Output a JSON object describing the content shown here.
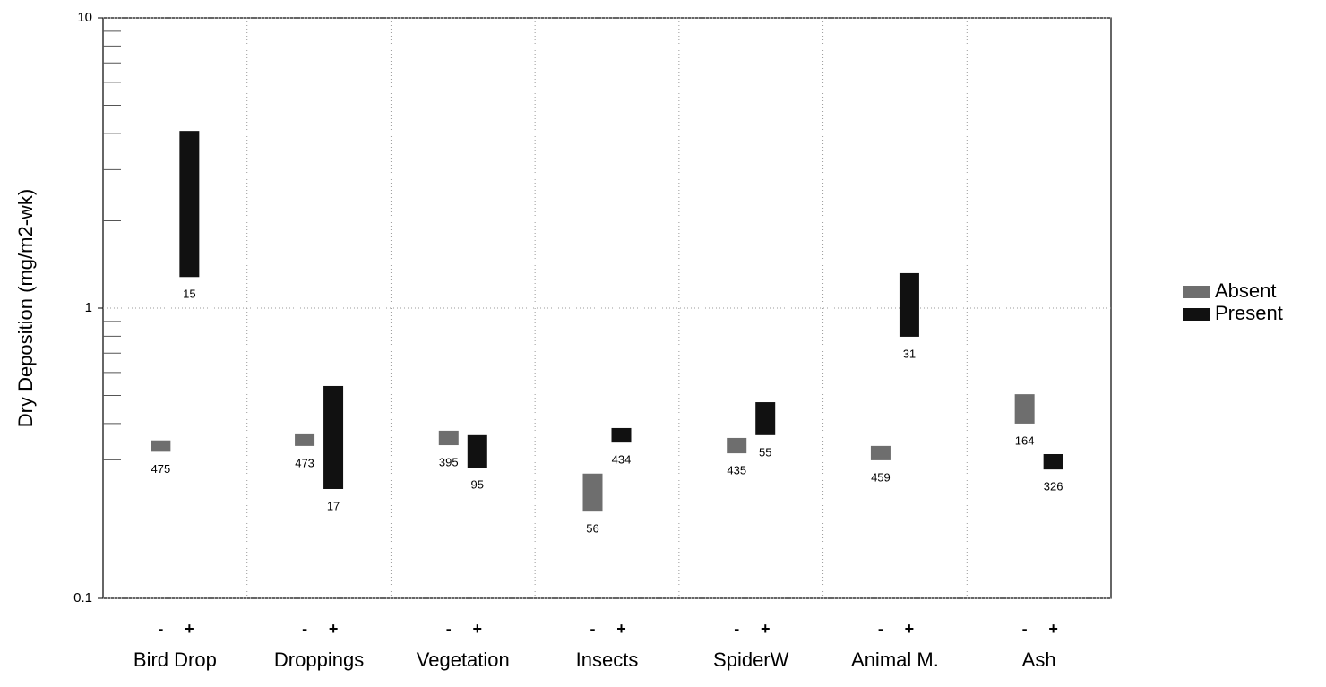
{
  "chart_data": {
    "type": "floating-bar",
    "ylabel": "Dry Deposition (mg/m2-wk)",
    "categories": [
      "Bird Drop",
      "Droppings",
      "Vegetation",
      "Insects",
      "SpiderW",
      "Animal M.",
      "Ash"
    ],
    "sublabels": [
      "-",
      "+"
    ],
    "series": [
      {
        "name": "Absent",
        "color": "#6e6e6e",
        "values": [
          [
            0.32,
            0.35
          ],
          [
            0.335,
            0.37
          ],
          [
            0.337,
            0.378
          ],
          [
            0.199,
            0.269
          ],
          [
            0.316,
            0.357
          ],
          [
            0.299,
            0.335
          ],
          [
            0.4,
            0.505
          ]
        ],
        "counts": [
          475,
          473,
          395,
          56,
          435,
          459,
          164
        ]
      },
      {
        "name": "Present",
        "color": "#111111",
        "values": [
          [
            1.28,
            4.08
          ],
          [
            0.238,
            0.539
          ],
          [
            0.282,
            0.365
          ],
          [
            0.344,
            0.386
          ],
          [
            0.365,
            0.474
          ],
          [
            0.797,
            1.32
          ],
          [
            0.278,
            0.314
          ]
        ],
        "counts": [
          15,
          17,
          95,
          434,
          55,
          31,
          326
        ]
      }
    ],
    "log_y": true,
    "ylim": [
      0.1,
      10
    ],
    "yticks": [
      0.1,
      1,
      10
    ],
    "yminorticks": [
      0.2,
      0.3,
      0.4,
      0.5,
      0.6,
      0.7,
      0.8,
      0.9,
      2,
      3,
      4,
      5,
      6,
      7,
      8,
      9
    ],
    "grid": true,
    "legend": "right"
  }
}
